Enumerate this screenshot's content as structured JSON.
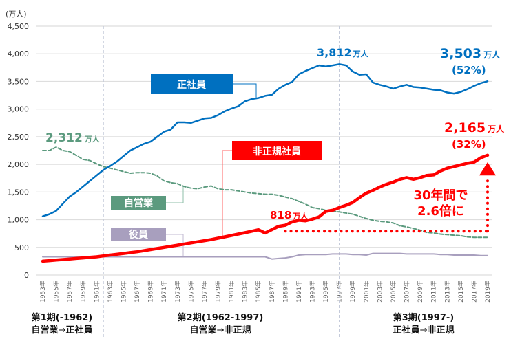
{
  "chart_data": {
    "type": "line",
    "title": "",
    "ylabel": "(万人)",
    "xlabel": "",
    "ylim": [
      0,
      4500
    ],
    "yticks": [
      "0",
      "500",
      "1,000",
      "1,500",
      "2,000",
      "2,500",
      "3,000",
      "3,500",
      "4,000",
      "4,500"
    ],
    "ytick_values": [
      0,
      500,
      1000,
      1500,
      2000,
      2500,
      3000,
      3500,
      4000,
      4500
    ],
    "x": [
      1953,
      1954,
      1955,
      1956,
      1957,
      1958,
      1959,
      1960,
      1961,
      1962,
      1963,
      1964,
      1965,
      1966,
      1967,
      1968,
      1969,
      1970,
      1971,
      1972,
      1973,
      1974,
      1975,
      1976,
      1977,
      1978,
      1979,
      1980,
      1981,
      1982,
      1983,
      1984,
      1985,
      1986,
      1987,
      1988,
      1989,
      1990,
      1991,
      1992,
      1993,
      1994,
      1995,
      1996,
      1997,
      1998,
      1999,
      2000,
      2001,
      2002,
      2003,
      2004,
      2005,
      2006,
      2007,
      2008,
      2009,
      2010,
      2011,
      2012,
      2013,
      2014,
      2015,
      2016,
      2017,
      2018,
      2019
    ],
    "xtick_labels": [
      "1953年",
      "1955年",
      "1957年",
      "1959年",
      "1961年",
      "1963年",
      "1965年",
      "1967年",
      "1969年",
      "1971年",
      "1973年",
      "1975年",
      "1977年",
      "1979年",
      "1981年",
      "1983年",
      "1985年",
      "1987年",
      "1989年",
      "1991年",
      "1993年",
      "1995年",
      "1997年",
      "1999年",
      "2001年",
      "2003年",
      "2005年",
      "2007年",
      "2009年",
      "2011年",
      "2013年",
      "2015年",
      "2017年",
      "2019年"
    ],
    "series": [
      {
        "name": "正社員",
        "color": "#0070c0",
        "style": "solid",
        "values": [
          1060,
          1100,
          1160,
          1290,
          1420,
          1500,
          1600,
          1700,
          1800,
          1900,
          1970,
          2050,
          2150,
          2250,
          2310,
          2370,
          2410,
          2500,
          2590,
          2630,
          2760,
          2760,
          2750,
          2790,
          2830,
          2840,
          2890,
          2960,
          3010,
          3050,
          3140,
          3180,
          3200,
          3240,
          3260,
          3370,
          3440,
          3490,
          3630,
          3690,
          3740,
          3790,
          3770,
          3790,
          3812,
          3790,
          3680,
          3620,
          3630,
          3480,
          3440,
          3410,
          3370,
          3410,
          3440,
          3400,
          3390,
          3370,
          3350,
          3340,
          3300,
          3280,
          3310,
          3360,
          3420,
          3470,
          3503
        ]
      },
      {
        "name": "自営業",
        "color": "#5b9a7e",
        "style": "dashed",
        "values": [
          2250,
          2250,
          2312,
          2250,
          2230,
          2160,
          2090,
          2070,
          2010,
          1960,
          1930,
          1900,
          1870,
          1840,
          1850,
          1850,
          1840,
          1790,
          1700,
          1670,
          1650,
          1600,
          1570,
          1560,
          1590,
          1610,
          1560,
          1540,
          1540,
          1520,
          1500,
          1480,
          1470,
          1460,
          1460,
          1440,
          1410,
          1380,
          1330,
          1280,
          1220,
          1200,
          1170,
          1150,
          1140,
          1120,
          1100,
          1060,
          1020,
          990,
          970,
          960,
          940,
          890,
          870,
          840,
          810,
          770,
          760,
          740,
          730,
          720,
          710,
          690,
          680,
          680,
          680
        ]
      },
      {
        "name": "非正規社員",
        "color": "#ff0000",
        "style": "solid",
        "values": [
          250,
          260,
          270,
          280,
          290,
          300,
          310,
          320,
          330,
          345,
          360,
          375,
          390,
          405,
          420,
          440,
          460,
          480,
          500,
          520,
          540,
          560,
          580,
          600,
          620,
          640,
          665,
          690,
          715,
          740,
          765,
          790,
          818,
          760,
          820,
          880,
          900,
          960,
          990,
          980,
          1010,
          1050,
          1150,
          1170,
          1220,
          1260,
          1310,
          1400,
          1480,
          1530,
          1590,
          1640,
          1680,
          1730,
          1760,
          1730,
          1760,
          1800,
          1810,
          1880,
          1930,
          1960,
          1990,
          2020,
          2040,
          2120,
          2165
        ]
      },
      {
        "name": "役員",
        "color": "#a89fbe",
        "style": "solid",
        "values": [
          330,
          330,
          330,
          330,
          330,
          330,
          330,
          330,
          330,
          330,
          330,
          330,
          330,
          330,
          330,
          330,
          330,
          330,
          330,
          330,
          330,
          330,
          330,
          330,
          330,
          330,
          330,
          330,
          330,
          330,
          330,
          330,
          330,
          330,
          290,
          300,
          310,
          330,
          360,
          370,
          370,
          370,
          370,
          380,
          380,
          380,
          370,
          370,
          360,
          390,
          390,
          390,
          390,
          390,
          380,
          380,
          380,
          380,
          380,
          370,
          370,
          360,
          360,
          360,
          360,
          350,
          350
        ]
      }
    ],
    "annotations": {
      "seishain_label": "正社員",
      "jieigyo_label": "自営業",
      "hiseiki_label": "非正規社員",
      "yakuin_label": "役員",
      "jieigyo_1955": "2,312",
      "seishain_peak": "3,812",
      "hiseiki_1986": "818",
      "seishain_2019": "3,503",
      "seishain_2019_pct": "(52%)",
      "hiseiki_2019": "2,165",
      "hiseiki_2019_pct": "(32%)",
      "unit": "万人",
      "growth_line1": "30年間で",
      "growth_line2": "2.6倍に"
    },
    "period_dividers": [
      1962,
      1997
    ],
    "periods": [
      {
        "line1": "第1期(-1962)",
        "line2": "自営業⇒正社員"
      },
      {
        "line1": "第2期(1962-1997)",
        "line2": "自営業⇒非正規"
      },
      {
        "line1": "第3期(1997-)",
        "line2": "正社員⇒非正規"
      }
    ],
    "grid": true
  }
}
